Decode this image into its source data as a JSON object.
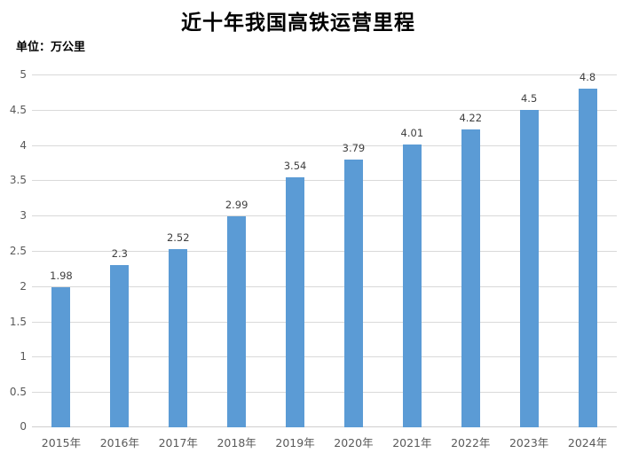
{
  "chart": {
    "title": "近十年我国高铁运营里程",
    "unit_label": "单位：万公里"
  },
  "chart_data": {
    "type": "bar",
    "title": "近十年我国高铁运营里程",
    "subtitle": "",
    "unit_label": "单位：万公里",
    "categories": [
      "2015年",
      "2016年",
      "2017年",
      "2018年",
      "2019年",
      "2020年",
      "2021年",
      "2022年",
      "2023年",
      "2024年"
    ],
    "values": [
      1.98,
      2.3,
      2.52,
      2.99,
      3.54,
      3.79,
      4.01,
      4.22,
      4.5,
      4.8
    ],
    "value_labels": [
      "1.98",
      "2.3",
      "2.52",
      "2.99",
      "3.54",
      "3.79",
      "4.01",
      "4.22",
      "4.5",
      "4.8"
    ],
    "xlabel": "",
    "ylabel": "万公里",
    "ylim": [
      0,
      5
    ],
    "ytick_step": 0.5,
    "ytick_labels": [
      "0",
      "0.5",
      "1",
      "1.5",
      "2",
      "2.5",
      "3",
      "3.5",
      "4",
      "4.5",
      "5"
    ],
    "grid": true,
    "legend_position": "none",
    "bar_color": "#5B9BD5",
    "gridline_color": "#D9D9D9",
    "axis_line_color": "#D0CECE",
    "axis_label_color": "#595959",
    "value_label_color": "#404040",
    "background_color": "#FFFFFF"
  }
}
